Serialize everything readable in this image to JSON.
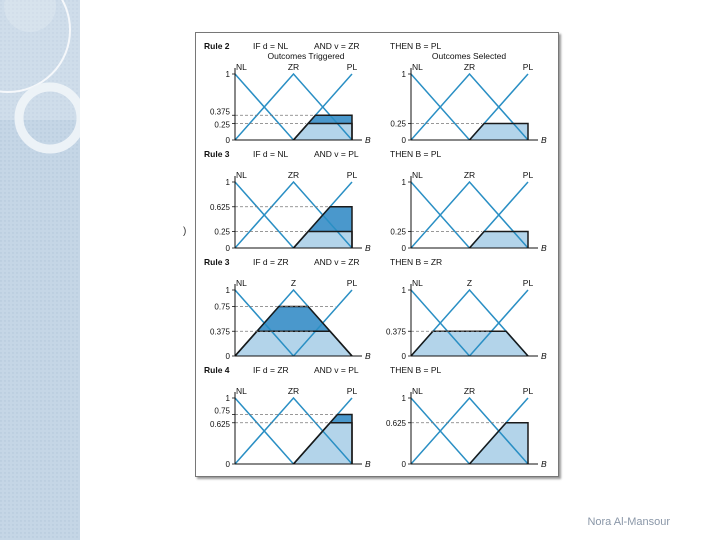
{
  "footer": {
    "author": "Nora Al-Mansour"
  },
  "stray_mark": ")",
  "colors": {
    "line": "#2a8fc4",
    "light_fill": "#b3d4ea",
    "dark_fill": "#4a98cc",
    "frame_outline": "#1a1a1a",
    "sidebar": "#c5d6e6"
  },
  "figure": {
    "headers": {
      "left": "Outcomes Triggered",
      "right": "Outcomes Selected"
    },
    "output_variable": "B",
    "rules": [
      {
        "title": "Rule 2",
        "if_part": "IF d = NL",
        "and_part": "AND v = ZR",
        "then_part": "THEN B = PL",
        "labels": [
          "NL",
          "ZR",
          "PL"
        ],
        "left_ticks": [
          "1",
          "0.375",
          "0.25",
          "0"
        ],
        "right_ticks": [
          "1",
          "0.25",
          "0"
        ],
        "consequent": "PL",
        "triggered_levels": [
          0.25,
          0.375
        ],
        "selected_level": 0.25
      },
      {
        "title": "Rule 3",
        "if_part": "IF d = NL",
        "and_part": "AND v = PL",
        "then_part": "THEN B = PL",
        "labels": [
          "NL",
          "ZR",
          "PL"
        ],
        "left_ticks": [
          "1",
          "0.625",
          "0.25",
          "0"
        ],
        "right_ticks": [
          "1",
          "0.25",
          "0"
        ],
        "consequent": "PL",
        "triggered_levels": [
          0.25,
          0.625
        ],
        "selected_level": 0.25
      },
      {
        "title": "Rule 3",
        "if_part": "IF d = ZR",
        "and_part": "AND v = ZR",
        "then_part": "THEN B = ZR",
        "labels": [
          "NL",
          "Z",
          "PL"
        ],
        "left_ticks": [
          "1",
          "0.75",
          "0.375",
          "0"
        ],
        "right_ticks": [
          "1",
          "0.375",
          "0"
        ],
        "consequent": "ZR",
        "triggered_levels": [
          0.375,
          0.75
        ],
        "selected_level": 0.375
      },
      {
        "title": "Rule 4",
        "if_part": "IF d = ZR",
        "and_part": "AND v = PL",
        "then_part": "THEN B = PL",
        "labels": [
          "NL",
          "ZR",
          "PL"
        ],
        "left_ticks": [
          "1",
          "0.75",
          "0.625",
          "0"
        ],
        "right_ticks": [
          "1",
          "0.625",
          "0"
        ],
        "consequent": "PL",
        "triggered_levels": [
          0.625,
          0.75
        ],
        "selected_level": 0.625
      }
    ]
  }
}
